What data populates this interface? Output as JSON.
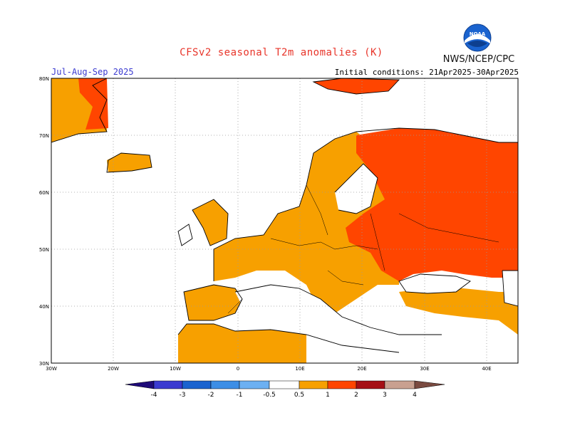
{
  "header": {
    "title": "CFSv2 seasonal T2m anomalies (K)",
    "period": "Jul-Aug-Sep 2025",
    "initial_conditions": "Initial conditions: 21Apr2025-30Apr2025",
    "agency": "NWS/NCEP/CPC",
    "logo_text": "NOAA",
    "logo_icon": "noaa-logo-icon"
  },
  "map": {
    "region": "Europe",
    "lat_range": [
      30,
      80
    ],
    "lon_range": [
      -30,
      45
    ],
    "lat_labels": [
      "80N",
      "70N",
      "60N",
      "50N",
      "40N",
      "30N"
    ],
    "lon_labels": [
      "30W",
      "20W",
      "10W",
      "0",
      "10E",
      "20E",
      "30E",
      "40E"
    ],
    "grid": "dotted"
  },
  "legend": {
    "tick_labels": [
      "-4",
      "-3",
      "-2",
      "-1",
      "-0.5",
      "0.5",
      "1",
      "2",
      "3",
      "4"
    ],
    "colors": [
      "#1e0a78",
      "#3a3ad0",
      "#1a63cf",
      "#3c8ee6",
      "#6cb0f2",
      "#ffffff",
      "#f7a000",
      "#ff4500",
      "#a50f15",
      "#c9a090",
      "#7a4a40"
    ]
  },
  "anomaly_regions": [
    {
      "name": "Greenland",
      "level": "1-2",
      "color": "#ff4500"
    },
    {
      "name": "Western Europe",
      "level": "0.5-1",
      "color": "#f7a000"
    },
    {
      "name": "Eastern Europe and Western Russia",
      "level": "1-2",
      "color": "#ff4500"
    }
  ]
}
